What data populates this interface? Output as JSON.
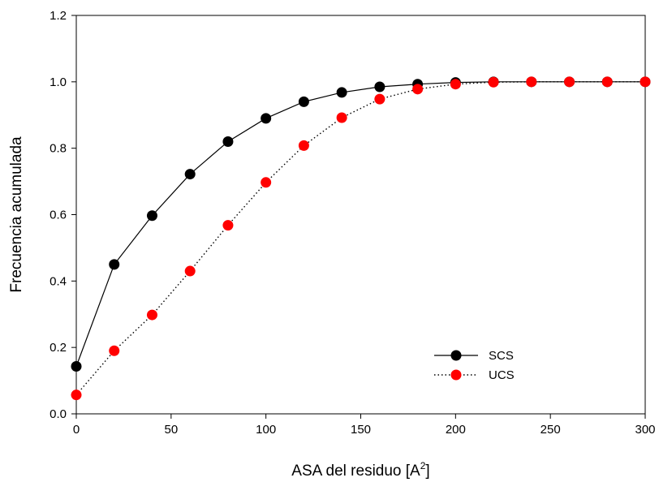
{
  "chart_data": {
    "type": "line",
    "xlabel": "ASA del residuo [A",
    "xlabel_sup": "2",
    "xlabel_end": "]",
    "ylabel": "Frecuencia acumulada",
    "xlim": [
      0,
      300
    ],
    "ylim": [
      0,
      1.2
    ],
    "xticks": [
      "0",
      "50",
      "100",
      "150",
      "200",
      "250",
      "300"
    ],
    "yticks": [
      "0.0",
      "0.2",
      "0.4",
      "0.6",
      "0.8",
      "1.0",
      "1.2"
    ],
    "grid": false,
    "legend_position": "lower-right",
    "x": [
      0,
      20,
      40,
      60,
      80,
      100,
      120,
      140,
      160,
      180,
      200,
      220,
      240,
      260,
      280,
      300
    ],
    "series": [
      {
        "name": "SCS",
        "line_style": "solid",
        "color": "#000000",
        "values": [
          0.143,
          0.45,
          0.597,
          0.722,
          0.82,
          0.89,
          0.94,
          0.968,
          0.985,
          0.993,
          0.998,
          1.0,
          1.0,
          1.0,
          1.0,
          1.0
        ]
      },
      {
        "name": "UCS",
        "line_style": "dotted",
        "color": "#ff0000",
        "values": [
          0.057,
          0.19,
          0.298,
          0.43,
          0.568,
          0.697,
          0.808,
          0.892,
          0.948,
          0.978,
          0.993,
          0.999,
          1.0,
          1.0,
          1.0,
          1.0
        ]
      }
    ]
  }
}
